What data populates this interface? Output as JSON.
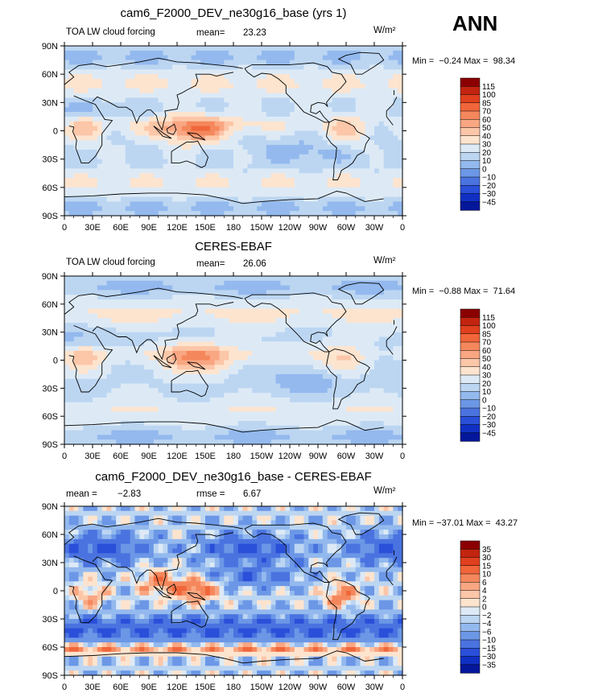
{
  "season": "ANN",
  "units": "W/m²",
  "chart_data": [
    {
      "type": "heatmap",
      "title": "cam6_F2000_DEV_ne30g16_base (yrs 1)",
      "left_label": "TOA LW cloud forcing",
      "stat1_label": "mean=",
      "stat1_value": "23.23",
      "stat2_label": "",
      "stat2_value": "",
      "minmax": "Min =  −0.24 Max =  98.34",
      "lat_ticks": [
        "90N",
        "60N",
        "30N",
        "0",
        "30S",
        "60S",
        "90S"
      ],
      "lon_ticks": [
        "0",
        "30E",
        "60E",
        "90E",
        "120E",
        "150E",
        "180",
        "150W",
        "120W",
        "90W",
        "60W",
        "30W",
        "0"
      ],
      "colorbar_levels": [
        "115",
        "100",
        "85",
        "70",
        "60",
        "50",
        "40",
        "30",
        "20",
        "10",
        "0",
        "−10",
        "−20",
        "−30",
        "−45"
      ],
      "colorbar_colors": [
        "#8b0000",
        "#c2240f",
        "#e0401e",
        "#f0663a",
        "#f5875c",
        "#f9a682",
        "#fcc6a8",
        "#fde4cf",
        "#ddeaf6",
        "#bcd6f2",
        "#93b9ee",
        "#6c97e6",
        "#4a73e0",
        "#2a4fd9",
        "#1030c4",
        "#04169a"
      ]
    },
    {
      "type": "heatmap",
      "title": "CERES-EBAF",
      "left_label": "TOA LW cloud forcing",
      "stat1_label": "mean=",
      "stat1_value": "26.06",
      "stat2_label": "",
      "stat2_value": "",
      "minmax": "Min =  −0.88 Max =  71.64",
      "lat_ticks": [
        "90N",
        "60N",
        "30N",
        "0",
        "30S",
        "60S",
        "90S"
      ],
      "lon_ticks": [
        "0",
        "30E",
        "60E",
        "90E",
        "120E",
        "150E",
        "180",
        "150W",
        "120W",
        "90W",
        "60W",
        "30W",
        "0"
      ],
      "colorbar_levels": [
        "115",
        "100",
        "85",
        "70",
        "60",
        "50",
        "40",
        "30",
        "20",
        "10",
        "0",
        "−10",
        "−20",
        "−30",
        "−45"
      ],
      "colorbar_colors": [
        "#8b0000",
        "#c2240f",
        "#e0401e",
        "#f0663a",
        "#f5875c",
        "#f9a682",
        "#fcc6a8",
        "#fde4cf",
        "#ddeaf6",
        "#bcd6f2",
        "#93b9ee",
        "#6c97e6",
        "#4a73e0",
        "#2a4fd9",
        "#1030c4",
        "#04169a"
      ]
    },
    {
      "type": "heatmap",
      "title": "cam6_F2000_DEV_ne30g16_base - CERES-EBAF",
      "left_label": "mean =",
      "stat1_label": "",
      "stat1_value": "−2.83",
      "stat2_label": "rmse =",
      "stat2_value": "6.67",
      "minmax": "Min = −37.01 Max =  43.27",
      "lat_ticks": [
        "90N",
        "60N",
        "30N",
        "0",
        "30S",
        "60S",
        "90S"
      ],
      "lon_ticks": [
        "0",
        "30E",
        "60E",
        "90E",
        "120E",
        "150E",
        "180",
        "150W",
        "120W",
        "90W",
        "60W",
        "30W",
        "0"
      ],
      "colorbar_levels": [
        "35",
        "30",
        "15",
        "10",
        "6",
        "4",
        "2",
        "0",
        "−2",
        "−4",
        "−6",
        "−10",
        "−15",
        "−30",
        "−35"
      ],
      "colorbar_colors": [
        "#8b0000",
        "#c2240f",
        "#e0401e",
        "#f0663a",
        "#f5875c",
        "#f9a682",
        "#fcc6a8",
        "#fde4cf",
        "#ddeaf6",
        "#bcd6f2",
        "#93b9ee",
        "#6c97e6",
        "#4a73e0",
        "#2a4fd9",
        "#1030c4",
        "#04169a"
      ]
    }
  ]
}
